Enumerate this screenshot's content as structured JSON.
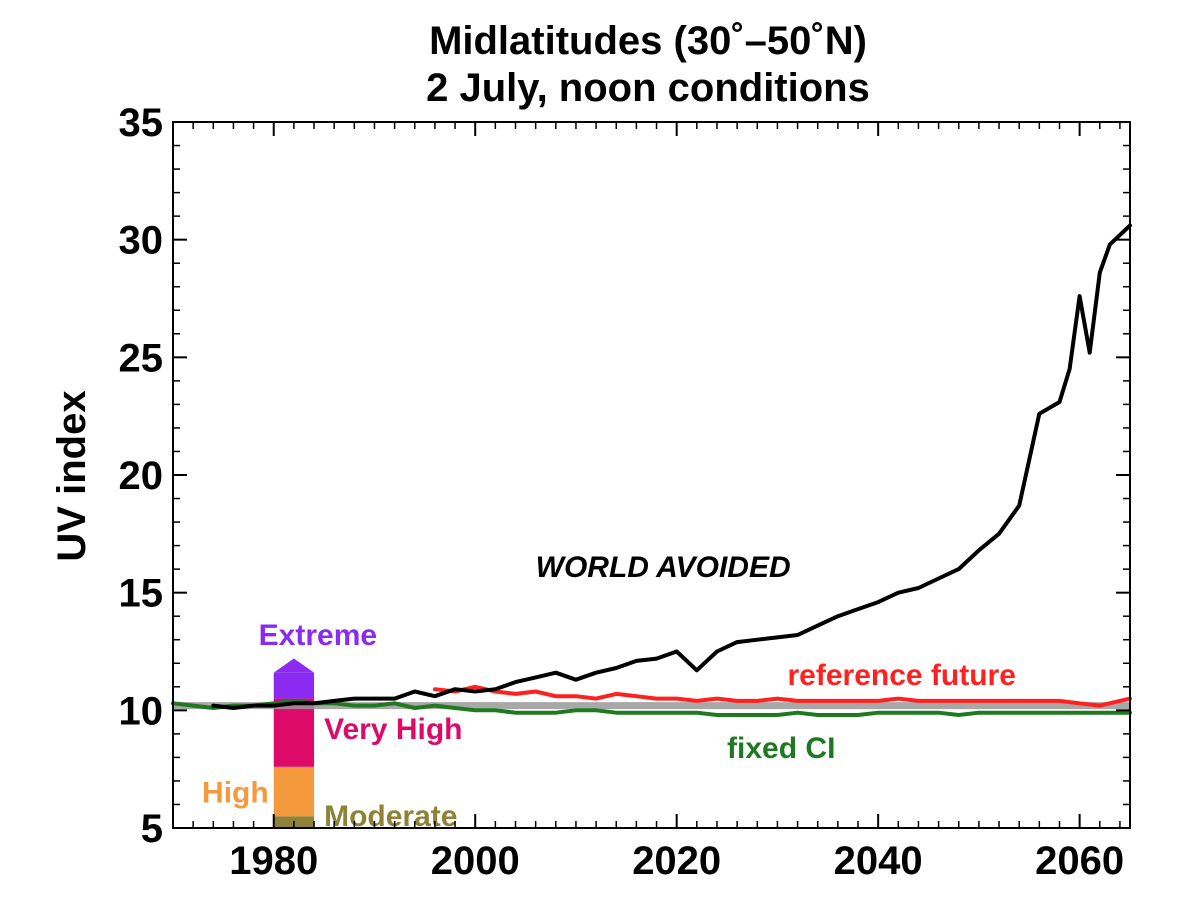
{
  "chart_data": {
    "type": "line",
    "title": "Midlatitudes (30˚–50˚N)",
    "subtitle": "2 July, noon conditions",
    "xlabel": "",
    "ylabel": "UV index",
    "xlim": [
      1970,
      2065
    ],
    "ylim": [
      5,
      35
    ],
    "x_ticks": [
      1980,
      2000,
      2020,
      2040,
      2060
    ],
    "y_ticks": [
      5,
      10,
      15,
      20,
      25,
      30,
      35
    ],
    "grid": false,
    "reference_line": {
      "y": 10.2,
      "color": "#999999"
    },
    "series": [
      {
        "key": "world_avoided",
        "color": "#000000",
        "x": [
          1974,
          1976,
          1978,
          1980,
          1982,
          1984,
          1986,
          1988,
          1990,
          1992,
          1994,
          1996,
          1998,
          2000,
          2002,
          2004,
          2006,
          2008,
          2010,
          2012,
          2014,
          2016,
          2018,
          2020,
          2022,
          2024,
          2026,
          2028,
          2030,
          2032,
          2034,
          2036,
          2038,
          2040,
          2042,
          2044,
          2046,
          2048,
          2050,
          2052,
          2054,
          2056,
          2058,
          2059,
          2060,
          2061,
          2062,
          2063,
          2065
        ],
        "y": [
          10.2,
          10.1,
          10.2,
          10.2,
          10.3,
          10.3,
          10.4,
          10.5,
          10.5,
          10.5,
          10.8,
          10.6,
          10.9,
          10.8,
          10.9,
          11.2,
          11.4,
          11.6,
          11.3,
          11.6,
          11.8,
          12.1,
          12.2,
          12.5,
          11.7,
          12.5,
          12.9,
          13.0,
          13.1,
          13.2,
          13.6,
          14.0,
          14.3,
          14.6,
          15.0,
          15.2,
          15.6,
          16.0,
          16.8,
          17.5,
          18.7,
          22.6,
          23.1,
          24.5,
          27.6,
          25.2,
          28.6,
          29.8,
          30.6
        ]
      },
      {
        "key": "reference_future",
        "color": "#ff2020",
        "x": [
          1996,
          1998,
          2000,
          2002,
          2004,
          2006,
          2008,
          2010,
          2012,
          2014,
          2016,
          2018,
          2020,
          2022,
          2024,
          2026,
          2028,
          2030,
          2032,
          2034,
          2036,
          2038,
          2040,
          2042,
          2044,
          2046,
          2048,
          2050,
          2052,
          2054,
          2056,
          2058,
          2060,
          2062,
          2065
        ],
        "y": [
          10.9,
          10.8,
          11.0,
          10.8,
          10.7,
          10.8,
          10.6,
          10.6,
          10.5,
          10.7,
          10.6,
          10.5,
          10.5,
          10.4,
          10.5,
          10.4,
          10.4,
          10.5,
          10.4,
          10.4,
          10.4,
          10.4,
          10.4,
          10.5,
          10.4,
          10.4,
          10.4,
          10.4,
          10.4,
          10.4,
          10.4,
          10.4,
          10.3,
          10.2,
          10.5
        ]
      },
      {
        "key": "fixed_cl",
        "color": "#1f7a1f",
        "x": [
          1970,
          1972,
          1974,
          1976,
          1978,
          1980,
          1982,
          1984,
          1986,
          1988,
          1990,
          1992,
          1994,
          1996,
          1998,
          2000,
          2002,
          2004,
          2006,
          2008,
          2010,
          2012,
          2014,
          2016,
          2018,
          2020,
          2022,
          2024,
          2026,
          2028,
          2030,
          2032,
          2034,
          2036,
          2038,
          2040,
          2042,
          2044,
          2046,
          2048,
          2050,
          2052,
          2054,
          2056,
          2058,
          2060,
          2062,
          2065
        ],
        "y": [
          10.3,
          10.2,
          10.1,
          10.2,
          10.2,
          10.3,
          10.4,
          10.3,
          10.3,
          10.2,
          10.2,
          10.3,
          10.1,
          10.2,
          10.1,
          10.0,
          10.0,
          9.9,
          9.9,
          9.9,
          10.0,
          10.0,
          9.9,
          9.9,
          9.9,
          9.9,
          9.9,
          9.8,
          9.8,
          9.8,
          9.8,
          9.9,
          9.8,
          9.8,
          9.8,
          9.9,
          9.9,
          9.9,
          9.9,
          9.8,
          9.9,
          9.9,
          9.9,
          9.9,
          9.9,
          9.9,
          9.9,
          9.9
        ]
      }
    ],
    "series_labels": [
      {
        "text": "WORLD AVOIDED",
        "color": "#000000",
        "italic": true,
        "x": 2006,
        "y": 16.1,
        "anchor": "start"
      },
      {
        "text": "reference future",
        "color": "#ff2020",
        "italic": false,
        "x": 2031,
        "y": 11.5,
        "anchor": "start"
      },
      {
        "text": "fixed CI",
        "color": "#1f7a1f",
        "italic": false,
        "x": 2025,
        "y": 8.4,
        "anchor": "start"
      }
    ],
    "uv_scale": {
      "x_range": [
        1980,
        1984
      ],
      "bands": [
        {
          "from": 5,
          "to": 5.5,
          "color": "#8e8236",
          "label": "Moderate",
          "label_x": 1985,
          "label_y": 5.5,
          "anchor": "start"
        },
        {
          "from": 5.5,
          "to": 7.6,
          "color": "#f59a3c",
          "label": "High",
          "label_x": 1979.5,
          "label_y": 6.5,
          "anchor": "end"
        },
        {
          "from": 7.6,
          "to": 10.5,
          "color": "#de0a6a",
          "label": "Very High",
          "label_x": 1985,
          "label_y": 9.2,
          "anchor": "start"
        },
        {
          "from": 10.5,
          "to": 11.6,
          "color": "#8b2bf1",
          "label": "",
          "label_x": 0,
          "label_y": 0,
          "anchor": "start"
        }
      ],
      "arrow_top": 12.2,
      "extreme_label": {
        "text": "Extreme",
        "color": "#8b2bf1",
        "x": 1982,
        "y": 13.2,
        "anchor": "middle"
      }
    }
  }
}
